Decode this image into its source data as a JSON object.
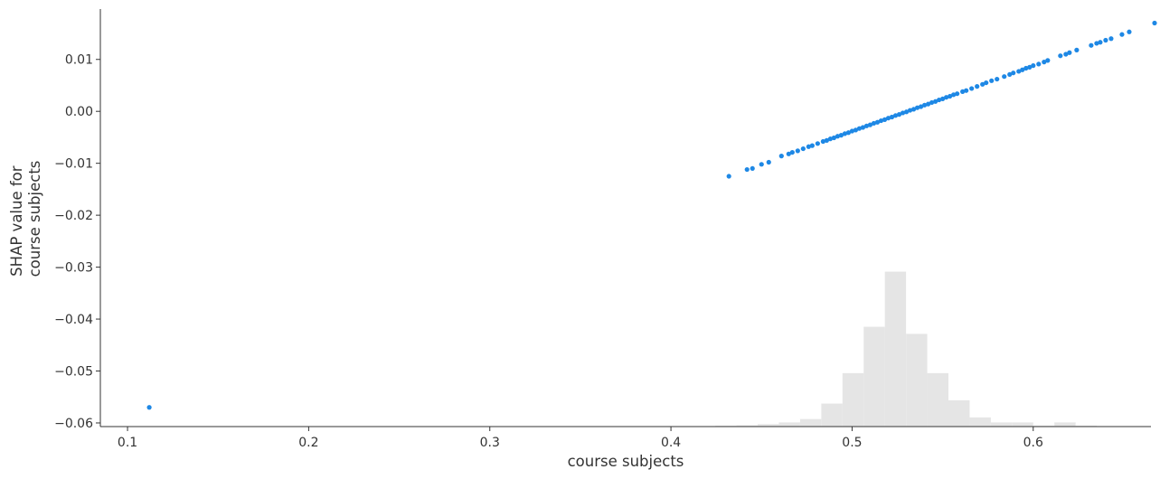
{
  "chart_data": {
    "type": "scatter",
    "xlabel": "course subjects",
    "ylabel": [
      "SHAP value for",
      "course subjects"
    ],
    "xlim": [
      0.085,
      0.665
    ],
    "ylim": [
      -0.0607,
      0.0197
    ],
    "xticks": [
      {
        "value": 0.1,
        "label": "0.1"
      },
      {
        "value": 0.2,
        "label": "0.2"
      },
      {
        "value": 0.3,
        "label": "0.3"
      },
      {
        "value": 0.4,
        "label": "0.4"
      },
      {
        "value": 0.5,
        "label": "0.5"
      },
      {
        "value": 0.6,
        "label": "0.6"
      }
    ],
    "yticks": [
      {
        "value": 0.01,
        "label": "0.01"
      },
      {
        "value": 0.0,
        "label": "0.00"
      },
      {
        "value": -0.01,
        "label": "−0.01"
      },
      {
        "value": -0.02,
        "label": "−0.02"
      },
      {
        "value": -0.03,
        "label": "−0.03"
      },
      {
        "value": -0.04,
        "label": "−0.04"
      },
      {
        "value": -0.05,
        "label": "−0.05"
      },
      {
        "value": -0.06,
        "label": "−0.06"
      }
    ],
    "grid": false,
    "point_color": "#1e88e5",
    "histogram_color": "#e5e5e5",
    "histogram": {
      "bin_edges": [
        0.4245,
        0.4362,
        0.4479,
        0.4596,
        0.4713,
        0.483,
        0.4947,
        0.5064,
        0.5181,
        0.5298,
        0.5415,
        0.5532,
        0.5649,
        0.5766,
        0.5883,
        0.6,
        0.6117,
        0.6234,
        0.6351
      ],
      "heights": [
        0.002,
        0.003,
        0.006,
        0.01,
        0.018,
        0.055,
        0.128,
        0.239,
        0.371,
        0.222,
        0.128,
        0.063,
        0.022,
        0.01,
        0.01,
        0.002,
        0.01,
        0.002
      ]
    },
    "points": [
      [
        0.112,
        -0.057
      ],
      [
        0.432,
        -0.0125
      ],
      [
        0.442,
        -0.0112
      ],
      [
        0.445,
        -0.011
      ],
      [
        0.45,
        -0.0102
      ],
      [
        0.454,
        -0.0098
      ],
      [
        0.461,
        -0.0086
      ],
      [
        0.465,
        -0.0082
      ],
      [
        0.467,
        -0.0079
      ],
      [
        0.47,
        -0.0076
      ],
      [
        0.473,
        -0.0072
      ],
      [
        0.476,
        -0.0068
      ],
      [
        0.478,
        -0.0066
      ],
      [
        0.481,
        -0.0062
      ],
      [
        0.484,
        -0.0058
      ],
      [
        0.486,
        -0.0056
      ],
      [
        0.488,
        -0.0053
      ],
      [
        0.49,
        -0.0051
      ],
      [
        0.492,
        -0.0048
      ],
      [
        0.494,
        -0.0046
      ],
      [
        0.496,
        -0.0043
      ],
      [
        0.498,
        -0.0041
      ],
      [
        0.5,
        -0.0038
      ],
      [
        0.502,
        -0.0036
      ],
      [
        0.504,
        -0.0033
      ],
      [
        0.506,
        -0.0031
      ],
      [
        0.508,
        -0.0028
      ],
      [
        0.51,
        -0.0026
      ],
      [
        0.512,
        -0.0023
      ],
      [
        0.514,
        -0.0021
      ],
      [
        0.516,
        -0.0018
      ],
      [
        0.518,
        -0.0016
      ],
      [
        0.52,
        -0.0013
      ],
      [
        0.522,
        -0.0011
      ],
      [
        0.524,
        -0.0008
      ],
      [
        0.526,
        -0.0006
      ],
      [
        0.528,
        -0.0003
      ],
      [
        0.53,
        -0.0001
      ],
      [
        0.532,
        0.0002
      ],
      [
        0.534,
        0.0004
      ],
      [
        0.536,
        0.0007
      ],
      [
        0.538,
        0.0009
      ],
      [
        0.54,
        0.0012
      ],
      [
        0.542,
        0.0014
      ],
      [
        0.544,
        0.0017
      ],
      [
        0.546,
        0.0019
      ],
      [
        0.548,
        0.0022
      ],
      [
        0.55,
        0.0024
      ],
      [
        0.552,
        0.0027
      ],
      [
        0.554,
        0.0029
      ],
      [
        0.556,
        0.0032
      ],
      [
        0.558,
        0.0034
      ],
      [
        0.561,
        0.0038
      ],
      [
        0.563,
        0.004
      ],
      [
        0.566,
        0.0044
      ],
      [
        0.569,
        0.0048
      ],
      [
        0.572,
        0.0052
      ],
      [
        0.574,
        0.0055
      ],
      [
        0.577,
        0.0059
      ],
      [
        0.58,
        0.0062
      ],
      [
        0.584,
        0.0067
      ],
      [
        0.587,
        0.0071
      ],
      [
        0.589,
        0.0074
      ],
      [
        0.592,
        0.0077
      ],
      [
        0.594,
        0.008
      ],
      [
        0.596,
        0.0083
      ],
      [
        0.598,
        0.0085
      ],
      [
        0.6,
        0.0088
      ],
      [
        0.603,
        0.0091
      ],
      [
        0.606,
        0.0095
      ],
      [
        0.608,
        0.0098
      ],
      [
        0.615,
        0.0107
      ],
      [
        0.618,
        0.011
      ],
      [
        0.62,
        0.0113
      ],
      [
        0.624,
        0.0118
      ],
      [
        0.632,
        0.0127
      ],
      [
        0.635,
        0.0131
      ],
      [
        0.637,
        0.0133
      ],
      [
        0.64,
        0.0137
      ],
      [
        0.643,
        0.014
      ],
      [
        0.649,
        0.0148
      ],
      [
        0.653,
        0.0153
      ],
      [
        0.667,
        0.017
      ]
    ]
  }
}
